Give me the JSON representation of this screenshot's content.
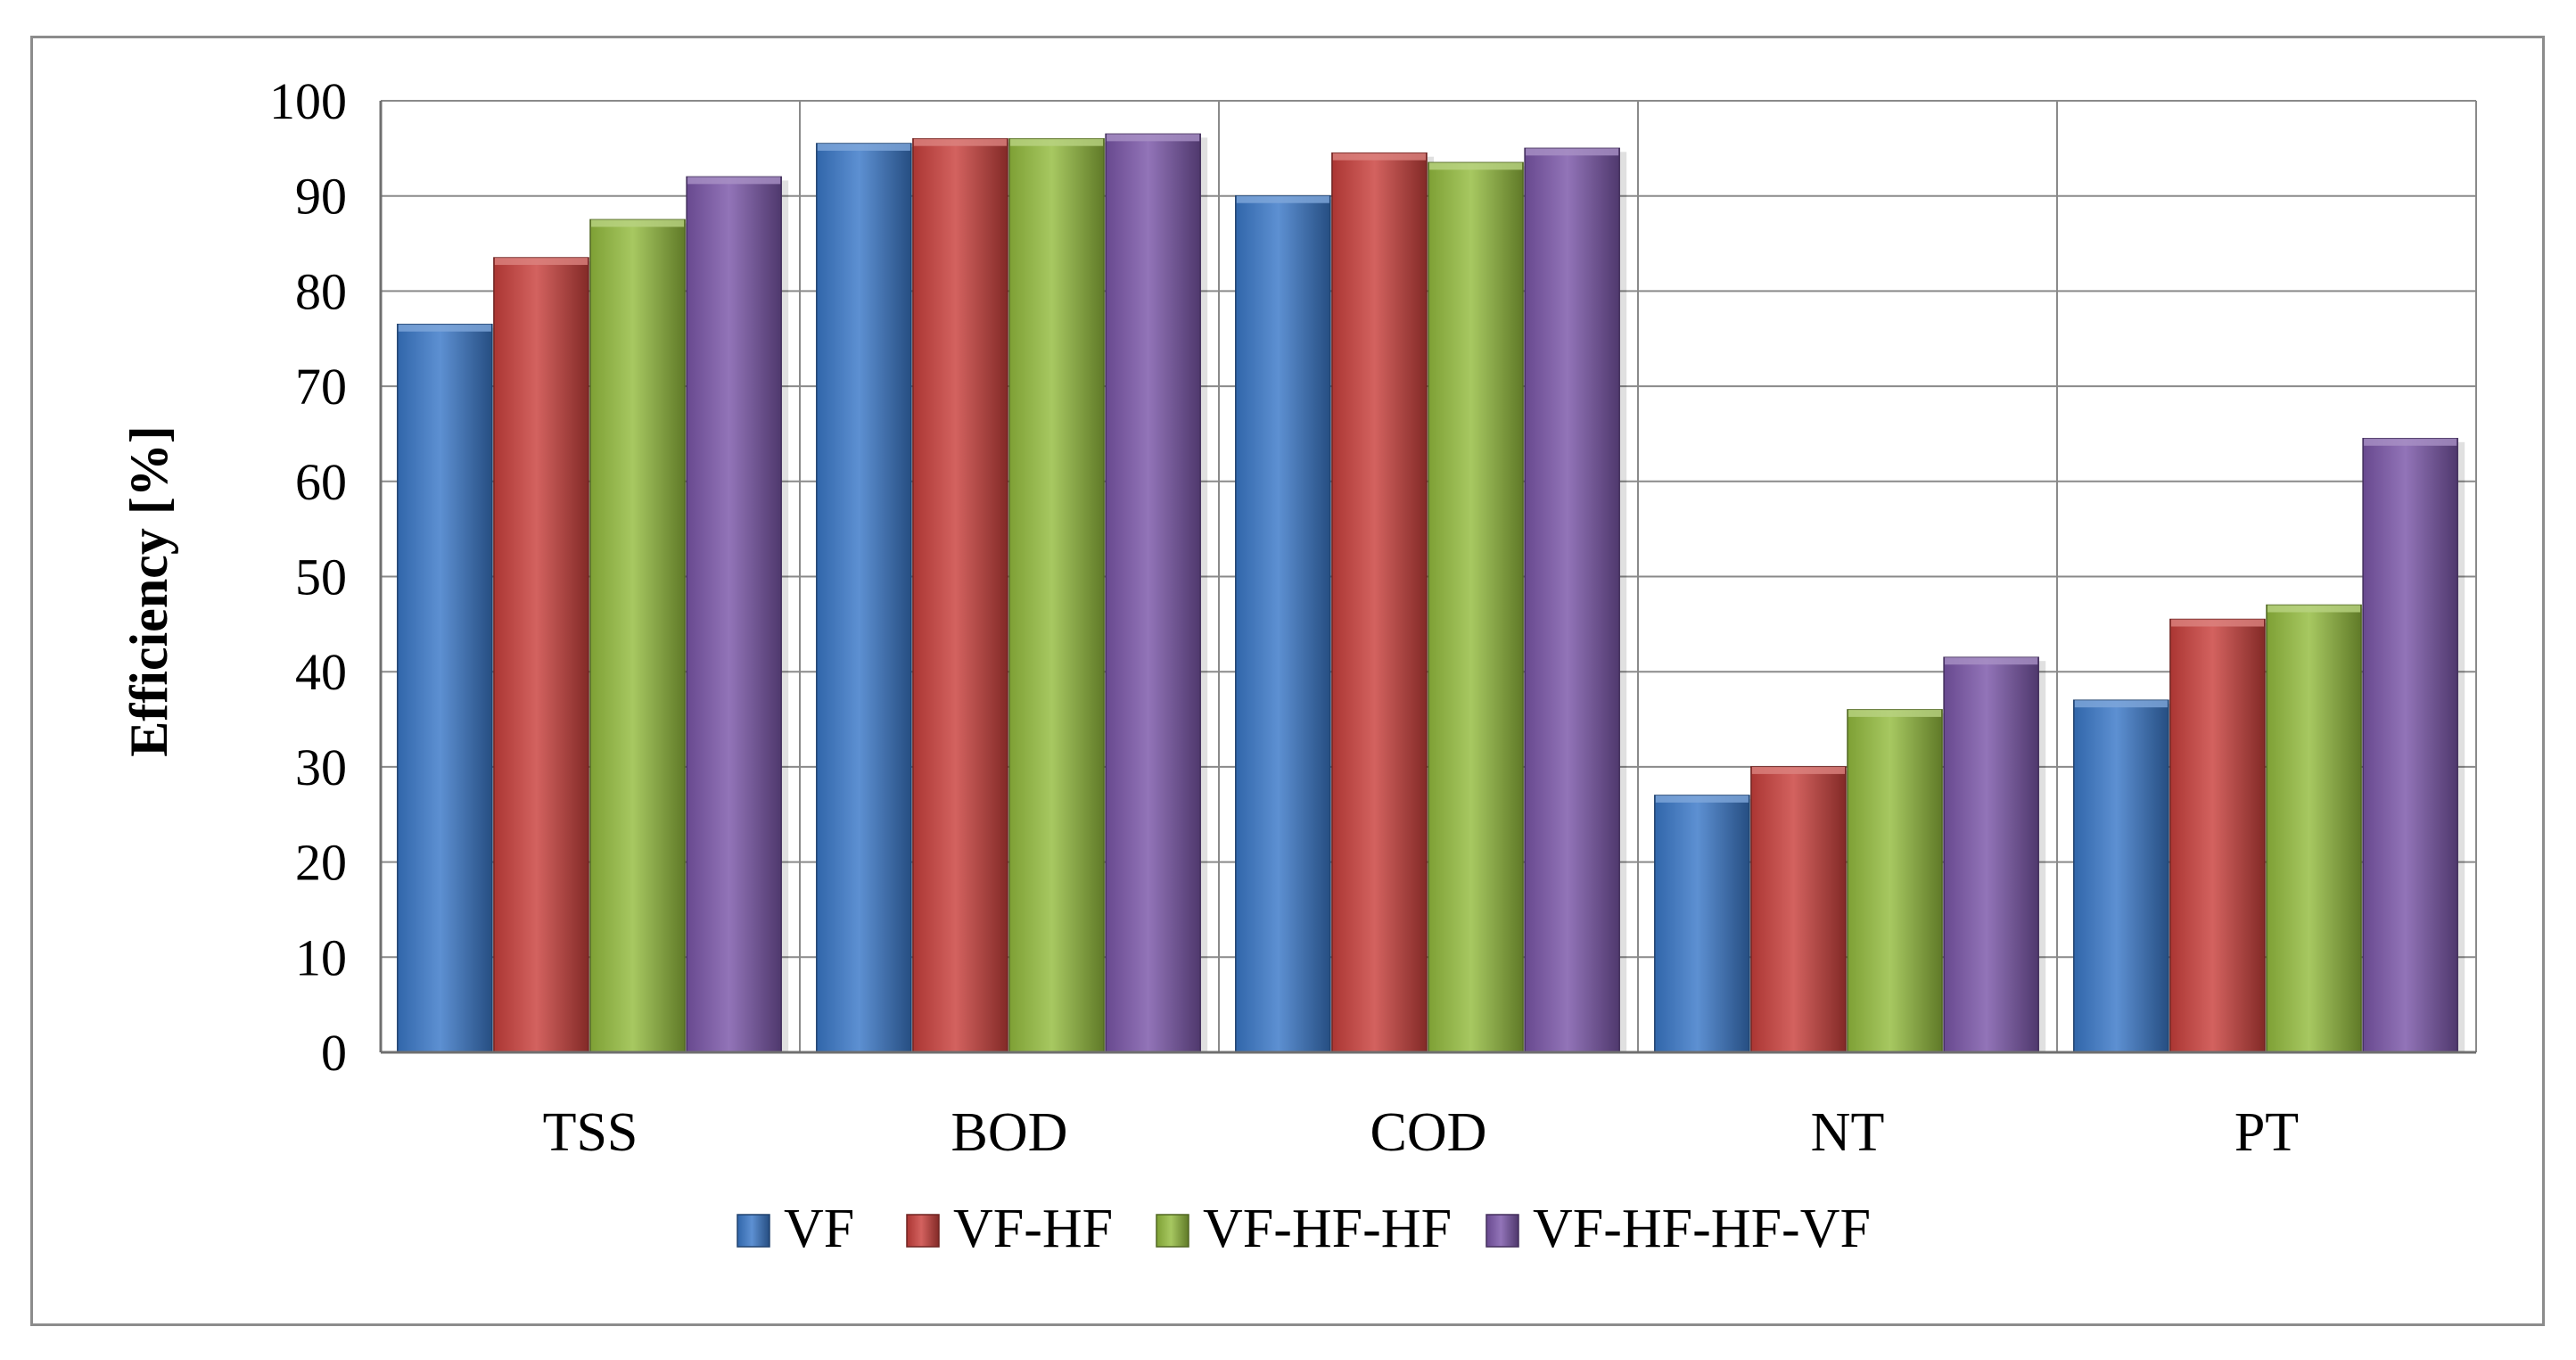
{
  "chart_data": {
    "type": "bar",
    "title": "",
    "xlabel": "",
    "ylabel": "Efficiency [%]",
    "ylim": [
      0,
      100
    ],
    "yticks": [
      0,
      10,
      20,
      30,
      40,
      50,
      60,
      70,
      80,
      90,
      100
    ],
    "grid": true,
    "legend_position": "bottom",
    "categories": [
      "TSS",
      "BOD",
      "COD",
      "NT",
      "PT"
    ],
    "series": [
      {
        "name": "VF",
        "color": "#3a78c8",
        "values": [
          76.5,
          95.5,
          90,
          27,
          37
        ]
      },
      {
        "name": "VF-HF",
        "color": "#c9403c",
        "values": [
          83.5,
          96,
          94.5,
          30,
          45.5
        ]
      },
      {
        "name": "VF-HF-HF",
        "color": "#94bc3e",
        "values": [
          87.5,
          96,
          93.5,
          36,
          47
        ]
      },
      {
        "name": "VF-HF-HF-VF",
        "color": "#7a56a8",
        "values": [
          92,
          96.5,
          95,
          41.5,
          64.5
        ]
      }
    ]
  }
}
